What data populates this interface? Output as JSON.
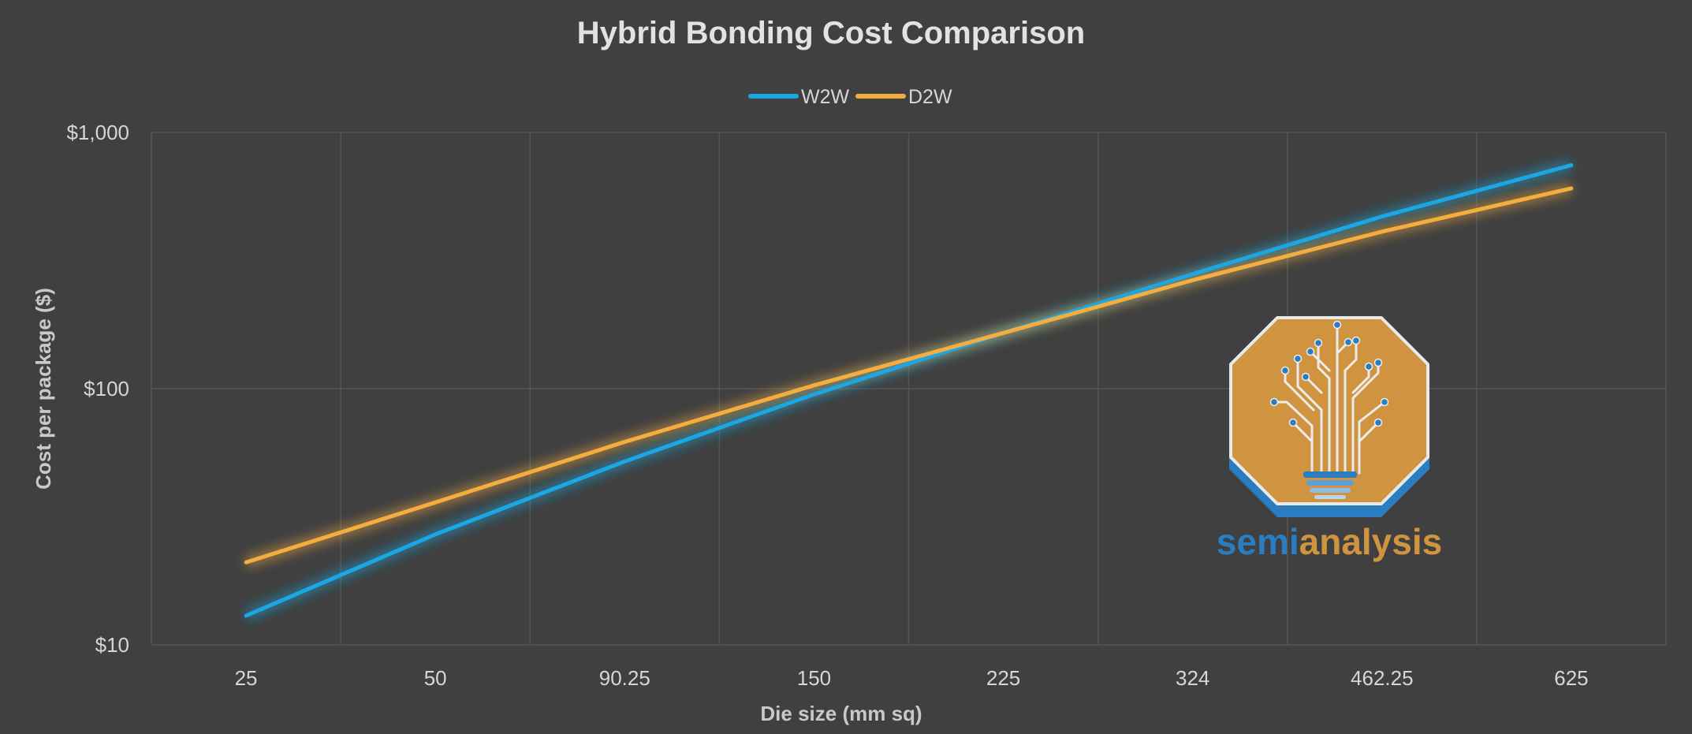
{
  "chart_data": {
    "type": "line",
    "title": "Hybrid Bonding Cost Comparison",
    "xlabel": "Die size (mm sq)",
    "ylabel": "Cost per package ($)",
    "categories": [
      "25",
      "50",
      "90.25",
      "150",
      "225",
      "324",
      "462.25",
      "625"
    ],
    "y_scale": "log",
    "ylim": [
      10,
      1000
    ],
    "y_ticks": [
      10,
      100,
      1000
    ],
    "y_tick_labels": [
      "$10",
      "$100",
      "$1,000"
    ],
    "grid": true,
    "legend_position": "top",
    "series": [
      {
        "name": "W2W",
        "color": "#1aa7e4",
        "values": [
          13,
          27,
          52,
          95,
          165,
          280,
          470,
          745
        ]
      },
      {
        "name": "D2W",
        "color": "#f6ad3f",
        "values": [
          21,
          36,
          62,
          103,
          165,
          265,
          410,
          605
        ]
      }
    ]
  },
  "logo": {
    "text_part1": "semi",
    "text_part2": "analysis",
    "color_blue": "#2b7dc2",
    "color_orange": "#d09440"
  },
  "colors": {
    "background": "#404040",
    "gridline": "#555555"
  }
}
